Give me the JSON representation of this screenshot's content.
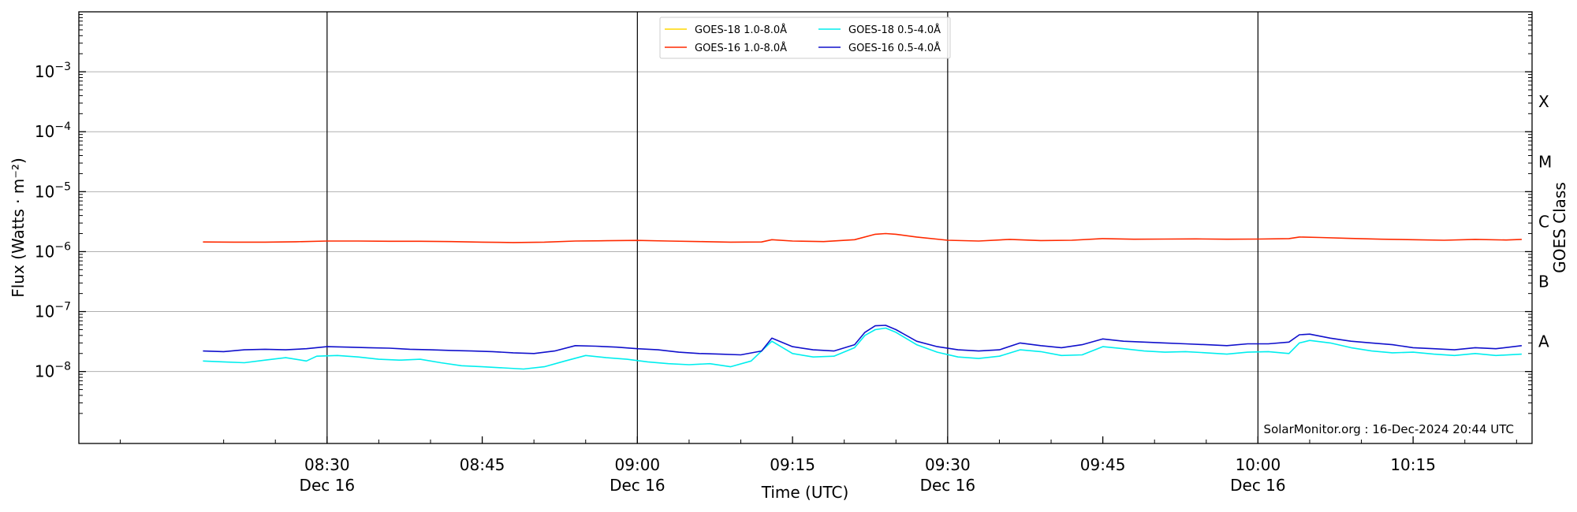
{
  "chart_data": {
    "type": "line",
    "xlabel": "Time (UTC)",
    "ylabel": "Flux (Watts · m⁻²)",
    "ylabel_right": "GOES Class",
    "y_scale": "log",
    "ylim": [
      1e-09,
      0.01
    ],
    "xlim": [
      "08:06",
      "10:26"
    ],
    "x_unit": "minutes past midnight UTC, 16-Dec-2024",
    "grid": "horizontal at y ticks",
    "legend_position": "top-center",
    "watermark": "SolarMonitor.org : 16-Dec-2024 20:44 UTC",
    "x_ticks": [
      {
        "value": 510,
        "time": "08:30",
        "date": "Dec 16"
      },
      {
        "value": 525,
        "time": "08:45",
        "date": ""
      },
      {
        "value": 540,
        "time": "09:00",
        "date": "Dec 16"
      },
      {
        "value": 555,
        "time": "09:15",
        "date": ""
      },
      {
        "value": 570,
        "time": "09:30",
        "date": "Dec 16"
      },
      {
        "value": 585,
        "time": "09:45",
        "date": ""
      },
      {
        "value": 600,
        "time": "10:00",
        "date": "Dec 16"
      },
      {
        "value": 615,
        "time": "10:15",
        "date": ""
      }
    ],
    "vertical_lines": [
      510,
      540,
      570,
      600
    ],
    "y_ticks": [
      {
        "value": 1e-08,
        "base": "10",
        "exp": "−8"
      },
      {
        "value": 1e-07,
        "base": "10",
        "exp": "−7"
      },
      {
        "value": 1e-06,
        "base": "10",
        "exp": "−6"
      },
      {
        "value": 1e-05,
        "base": "10",
        "exp": "−5"
      },
      {
        "value": 0.0001,
        "base": "10",
        "exp": "−4"
      },
      {
        "value": 0.001,
        "base": "10",
        "exp": "−3"
      }
    ],
    "class_labels": [
      {
        "label": "A",
        "value": 3.16e-08
      },
      {
        "label": "B",
        "value": 3.16e-07
      },
      {
        "label": "C",
        "value": 3.16e-06
      },
      {
        "label": "M",
        "value": 3.16e-05
      },
      {
        "label": "X",
        "value": 0.000316
      }
    ],
    "series": [
      {
        "name": "GOES-18 1.0-8.0Å",
        "color": "#ffd700",
        "x": [],
        "y": []
      },
      {
        "name": "GOES-16 1.0-8.0Å",
        "color": "#ff2a00",
        "x": [
          498,
          501,
          504,
          507,
          510,
          513,
          516,
          519,
          522,
          525,
          528,
          531,
          534,
          537,
          540,
          543,
          546,
          549,
          552,
          553,
          555,
          558,
          561,
          563,
          564,
          565,
          567,
          570,
          573,
          576,
          579,
          582,
          585,
          588,
          591,
          594,
          597,
          600,
          603,
          604,
          606,
          609,
          612,
          615,
          618,
          621,
          624,
          625.5
        ],
        "y": [
          1.45e-06,
          1.44e-06,
          1.44e-06,
          1.46e-06,
          1.5e-06,
          1.5e-06,
          1.49e-06,
          1.49e-06,
          1.47e-06,
          1.44e-06,
          1.42e-06,
          1.44e-06,
          1.5e-06,
          1.52e-06,
          1.54e-06,
          1.5e-06,
          1.47e-06,
          1.44e-06,
          1.45e-06,
          1.58e-06,
          1.5e-06,
          1.47e-06,
          1.58e-06,
          1.95e-06,
          2e-06,
          1.95e-06,
          1.75e-06,
          1.55e-06,
          1.5e-06,
          1.6e-06,
          1.53e-06,
          1.55e-06,
          1.65e-06,
          1.61e-06,
          1.62e-06,
          1.63e-06,
          1.61e-06,
          1.62e-06,
          1.65e-06,
          1.75e-06,
          1.72e-06,
          1.66e-06,
          1.61e-06,
          1.58e-06,
          1.55e-06,
          1.6e-06,
          1.56e-06,
          1.6e-06
        ]
      },
      {
        "name": "GOES-18 0.5-4.0Å",
        "color": "#00eeee",
        "x": [
          498,
          500,
          502,
          504,
          506,
          508,
          509,
          511,
          513,
          515,
          517,
          519,
          521,
          523,
          525,
          527,
          529,
          531,
          533,
          535,
          537,
          539,
          541,
          543,
          545,
          547,
          549,
          551,
          553,
          555,
          557,
          559,
          561,
          562,
          563,
          564,
          565,
          567,
          569,
          571,
          573,
          575,
          577,
          579,
          581,
          583,
          585,
          587,
          589,
          591,
          593,
          595,
          597,
          599,
          601,
          603,
          604,
          605,
          607,
          609,
          611,
          613,
          615,
          617,
          619,
          621,
          623,
          625.5
        ],
        "y": [
          1.5e-08,
          1.45e-08,
          1.4e-08,
          1.55e-08,
          1.7e-08,
          1.5e-08,
          1.8e-08,
          1.85e-08,
          1.75e-08,
          1.6e-08,
          1.55e-08,
          1.6e-08,
          1.4e-08,
          1.25e-08,
          1.2e-08,
          1.15e-08,
          1.1e-08,
          1.2e-08,
          1.5e-08,
          1.85e-08,
          1.7e-08,
          1.6e-08,
          1.45e-08,
          1.35e-08,
          1.3e-08,
          1.35e-08,
          1.2e-08,
          1.5e-08,
          3.2e-08,
          2e-08,
          1.75e-08,
          1.8e-08,
          2.5e-08,
          4e-08,
          5e-08,
          5.3e-08,
          4.5e-08,
          2.8e-08,
          2.1e-08,
          1.75e-08,
          1.65e-08,
          1.8e-08,
          2.3e-08,
          2.15e-08,
          1.85e-08,
          1.9e-08,
          2.6e-08,
          2.4e-08,
          2.2e-08,
          2.1e-08,
          2.15e-08,
          2.05e-08,
          1.95e-08,
          2.1e-08,
          2.15e-08,
          2e-08,
          3e-08,
          3.3e-08,
          3e-08,
          2.5e-08,
          2.2e-08,
          2.05e-08,
          2.1e-08,
          1.95e-08,
          1.85e-08,
          2e-08,
          1.85e-08,
          1.95e-08
        ]
      },
      {
        "name": "GOES-16 0.5-4.0Å",
        "color": "#1010cc",
        "x": [
          498,
          500,
          502,
          504,
          506,
          508,
          510,
          512,
          514,
          516,
          518,
          520,
          522,
          524,
          526,
          528,
          530,
          532,
          534,
          536,
          538,
          540,
          542,
          544,
          546,
          548,
          550,
          552,
          553,
          555,
          557,
          559,
          561,
          562,
          563,
          564,
          565,
          567,
          569,
          571,
          573,
          575,
          577,
          579,
          581,
          583,
          585,
          587,
          589,
          591,
          593,
          595,
          597,
          599,
          601,
          603,
          604,
          605,
          607,
          609,
          611,
          613,
          615,
          617,
          619,
          621,
          623,
          625.5
        ],
        "y": [
          2.2e-08,
          2.15e-08,
          2.3e-08,
          2.35e-08,
          2.3e-08,
          2.4e-08,
          2.6e-08,
          2.55e-08,
          2.5e-08,
          2.45e-08,
          2.35e-08,
          2.3e-08,
          2.25e-08,
          2.2e-08,
          2.15e-08,
          2.05e-08,
          2e-08,
          2.2e-08,
          2.7e-08,
          2.65e-08,
          2.55e-08,
          2.4e-08,
          2.3e-08,
          2.1e-08,
          2e-08,
          1.95e-08,
          1.9e-08,
          2.2e-08,
          3.6e-08,
          2.6e-08,
          2.3e-08,
          2.2e-08,
          2.8e-08,
          4.5e-08,
          5.8e-08,
          5.9e-08,
          5e-08,
          3.2e-08,
          2.6e-08,
          2.3e-08,
          2.2e-08,
          2.3e-08,
          3e-08,
          2.7e-08,
          2.5e-08,
          2.8e-08,
          3.5e-08,
          3.2e-08,
          3.1e-08,
          3e-08,
          2.9e-08,
          2.8e-08,
          2.7e-08,
          2.9e-08,
          2.9e-08,
          3.1e-08,
          4.1e-08,
          4.2e-08,
          3.6e-08,
          3.2e-08,
          3e-08,
          2.8e-08,
          2.5e-08,
          2.4e-08,
          2.3e-08,
          2.5e-08,
          2.4e-08,
          2.7e-08
        ]
      }
    ]
  }
}
